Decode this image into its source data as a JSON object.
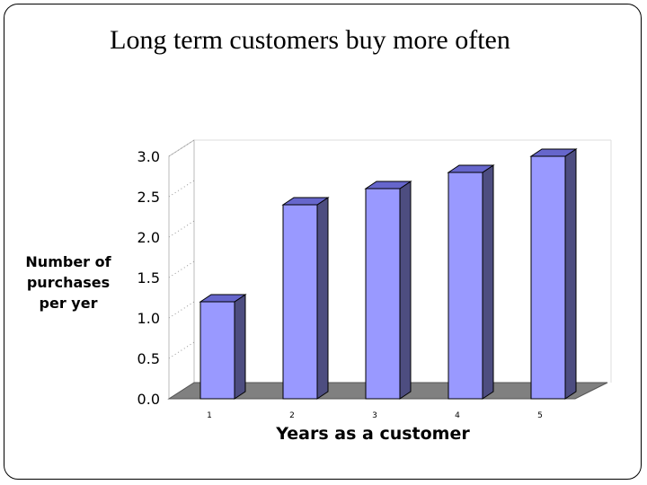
{
  "chart_data": {
    "type": "bar",
    "title": "Long term customers buy more often",
    "xlabel": "Years as a customer",
    "ylabel_lines": [
      "Number of",
      "purchases",
      "per yer"
    ],
    "categories": [
      "1",
      "2",
      "3",
      "4",
      "5"
    ],
    "values": [
      1.2,
      2.4,
      2.6,
      2.8,
      3.0
    ],
    "ylim": [
      0,
      3
    ],
    "yticks": [
      "0.0",
      "0.5",
      "1.0",
      "1.5",
      "2.0",
      "2.5",
      "3.0"
    ],
    "bar_color": "#9999ff",
    "bar_side_color": "#4d4d80",
    "bar_top_color": "#6666cc",
    "floor_color": "#808080",
    "legend": "none",
    "style": "3d"
  }
}
